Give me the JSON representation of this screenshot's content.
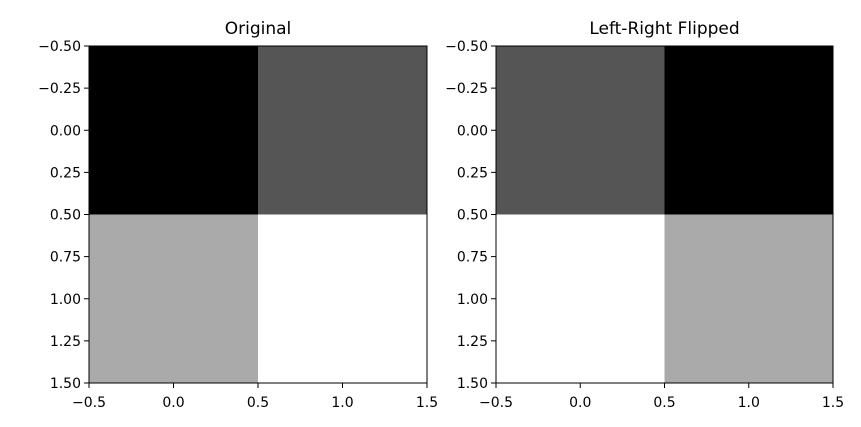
{
  "chart_data": [
    {
      "type": "heatmap",
      "title": "Original",
      "colormap": "gray",
      "values": [
        [
          0,
          1
        ],
        [
          2,
          3
        ]
      ],
      "value_range": [
        0,
        3
      ],
      "xlim": [
        -0.5,
        1.5
      ],
      "ylim": [
        1.5,
        -0.5
      ],
      "xticks": [
        "−0.5",
        "0.0",
        "0.5",
        "1.0",
        "1.5"
      ],
      "xtick_values": [
        -0.5,
        0.0,
        0.5,
        1.0,
        1.5
      ],
      "yticks": [
        "−0.50",
        "−0.25",
        "0.00",
        "0.25",
        "0.50",
        "0.75",
        "1.00",
        "1.25",
        "1.50"
      ],
      "ytick_values": [
        -0.5,
        -0.25,
        0,
        0.25,
        0.5,
        0.75,
        1.0,
        1.25,
        1.5
      ],
      "grid": false
    },
    {
      "type": "heatmap",
      "title": "Left-Right Flipped",
      "colormap": "gray",
      "values": [
        [
          1,
          0
        ],
        [
          3,
          2
        ]
      ],
      "value_range": [
        0,
        3
      ],
      "xlim": [
        -0.5,
        1.5
      ],
      "ylim": [
        1.5,
        -0.5
      ],
      "xticks": [
        "−0.5",
        "0.0",
        "0.5",
        "1.0",
        "1.5"
      ],
      "xtick_values": [
        -0.5,
        0.0,
        0.5,
        1.0,
        1.5
      ],
      "yticks": [
        "−0.50",
        "−0.25",
        "0.00",
        "0.25",
        "0.50",
        "0.75",
        "1.00",
        "1.25",
        "1.50"
      ],
      "ytick_values": [
        -0.5,
        -0.25,
        0,
        0.25,
        0.5,
        0.75,
        1.0,
        1.25,
        1.5
      ],
      "grid": false
    }
  ]
}
